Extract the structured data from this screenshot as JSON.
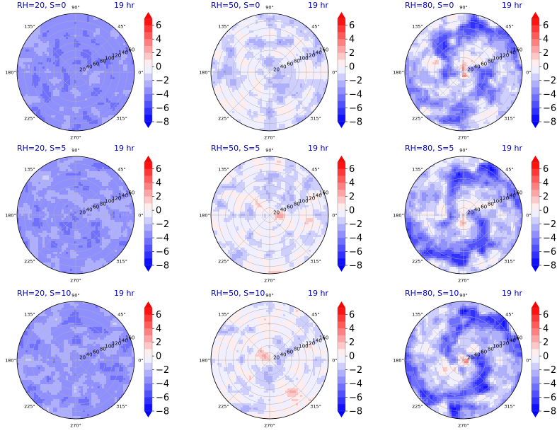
{
  "figure": {
    "colors": {
      "title": "#0000cc",
      "min": "#0000ff",
      "mid": "#ffffff",
      "max": "#ff0000",
      "grid": "#b0b0b0"
    }
  },
  "chart_data": [
    {
      "type": "polar-contour",
      "title": "RH=20, S=0",
      "time_label": "19 hr",
      "theta_labels": [
        "0°",
        "45°",
        "90°",
        "135°",
        "180°",
        "225°",
        "270°",
        "315°"
      ],
      "r_ticks": [
        20,
        40,
        60,
        80,
        100,
        120,
        140,
        160
      ],
      "r_label_angle_deg": 22.5,
      "r_max": 160,
      "colorbar": {
        "ticks": [
          6,
          4,
          2,
          0,
          -2,
          -4,
          -6,
          -8
        ],
        "min": -8,
        "max": 7,
        "extend": "both"
      },
      "field": {
        "base": -3.5,
        "noise": 0.8,
        "spiral": 0,
        "core": 0,
        "patches": []
      }
    },
    {
      "type": "polar-contour",
      "title": "RH=50, S=0",
      "time_label": "19 hr",
      "theta_labels": [
        "0°",
        "45°",
        "90°",
        "135°",
        "180°",
        "225°",
        "270°",
        "315°"
      ],
      "r_ticks": [
        20,
        40,
        60,
        80,
        100,
        120,
        140,
        160
      ],
      "r_label_angle_deg": 22.5,
      "r_max": 160,
      "colorbar": {
        "ticks": [
          6,
          4,
          2,
          0,
          -2,
          -4,
          -6,
          -8
        ],
        "min": -8,
        "max": 7,
        "extend": "both"
      },
      "field": {
        "base": -1.1,
        "noise": 1.3,
        "spiral": 0,
        "core": 0,
        "patches": []
      }
    },
    {
      "type": "polar-contour",
      "title": "RH=80, S=0",
      "time_label": "19 hr",
      "theta_labels": [
        "0°",
        "45°",
        "90°",
        "135°",
        "180°",
        "225°",
        "270°",
        "315°"
      ],
      "r_ticks": [
        20,
        40,
        60,
        80,
        100,
        120,
        140,
        160
      ],
      "r_label_angle_deg": 22.5,
      "r_max": 160,
      "colorbar": {
        "ticks": [
          6,
          4,
          2,
          0,
          -2,
          -4,
          -6,
          -8
        ],
        "min": -8,
        "max": 7,
        "extend": "both"
      },
      "field": {
        "base": -1.2,
        "noise": 1.6,
        "spiral": 3.2,
        "core": 4,
        "patches": []
      }
    },
    {
      "type": "polar-contour",
      "title": "RH=20, S=5",
      "time_label": "19 hr",
      "theta_labels": [
        "0°",
        "45°",
        "90°",
        "135°",
        "180°",
        "225°",
        "270°",
        "315°"
      ],
      "r_ticks": [
        20,
        40,
        60,
        80,
        100,
        120,
        140,
        160
      ],
      "r_label_angle_deg": 22.5,
      "r_max": 160,
      "colorbar": {
        "ticks": [
          6,
          4,
          2,
          0,
          -2,
          -4,
          -6,
          -8
        ],
        "min": -8,
        "max": 7,
        "extend": "both"
      },
      "field": {
        "base": -3.3,
        "noise": 0.9,
        "spiral": 0,
        "core": 0,
        "patches": []
      }
    },
    {
      "type": "polar-contour",
      "title": "RH=50, S=5",
      "time_label": "19 hr",
      "theta_labels": [
        "0°",
        "45°",
        "90°",
        "135°",
        "180°",
        "225°",
        "270°",
        "315°"
      ],
      "r_ticks": [
        20,
        40,
        60,
        80,
        100,
        120,
        140,
        160
      ],
      "r_label_angle_deg": 22.5,
      "r_max": 160,
      "colorbar": {
        "ticks": [
          6,
          4,
          2,
          0,
          -2,
          -4,
          -6,
          -8
        ],
        "min": -8,
        "max": 7,
        "extend": "both"
      },
      "field": {
        "base": -0.8,
        "noise": 1.4,
        "spiral": 0,
        "core": 0,
        "patches": [
          [
            -0.55,
            0.1,
            3
          ],
          [
            -0.3,
            0.3,
            2.5
          ],
          [
            0.2,
            -0.05,
            2.5
          ]
        ]
      }
    },
    {
      "type": "polar-contour",
      "title": "RH=80, S=5",
      "time_label": "19 hr",
      "theta_labels": [
        "0°",
        "45°",
        "90°",
        "135°",
        "180°",
        "225°",
        "270°",
        "315°"
      ],
      "r_ticks": [
        20,
        40,
        60,
        80,
        100,
        120,
        140,
        160
      ],
      "r_label_angle_deg": 22.5,
      "r_max": 160,
      "colorbar": {
        "ticks": [
          6,
          4,
          2,
          0,
          -2,
          -4,
          -6,
          -8
        ],
        "min": -8,
        "max": 7,
        "extend": "both"
      },
      "field": {
        "base": -1.6,
        "noise": 1.6,
        "spiral": 3.5,
        "core": 3,
        "patches": [
          [
            0.75,
            0.55,
            5
          ]
        ]
      }
    },
    {
      "type": "polar-contour",
      "title": "RH=20, S=10",
      "time_label": "19 hr",
      "theta_labels": [
        "0°",
        "45°",
        "90°",
        "135°",
        "180°",
        "225°",
        "270°",
        "315°"
      ],
      "r_ticks": [
        20,
        40,
        60,
        80,
        100,
        120,
        140,
        160
      ],
      "r_label_angle_deg": 22.5,
      "r_max": 160,
      "colorbar": {
        "ticks": [
          6,
          4,
          2,
          0,
          -2,
          -4,
          -6,
          -8
        ],
        "min": -8,
        "max": 7,
        "extend": "both"
      },
      "field": {
        "base": -3.2,
        "noise": 1.0,
        "spiral": 0,
        "core": 0,
        "patches": []
      }
    },
    {
      "type": "polar-contour",
      "title": "RH=50, S=10",
      "time_label": "19 hr",
      "theta_labels": [
        "0°",
        "45°",
        "90°",
        "135°",
        "180°",
        "225°",
        "270°",
        "315°"
      ],
      "r_ticks": [
        20,
        40,
        60,
        80,
        100,
        120,
        140,
        160
      ],
      "r_label_angle_deg": 22.5,
      "r_max": 160,
      "colorbar": {
        "ticks": [
          6,
          4,
          2,
          0,
          -2,
          -4,
          -6,
          -8
        ],
        "min": -8,
        "max": 7,
        "extend": "both"
      },
      "field": {
        "base": -0.7,
        "noise": 1.3,
        "spiral": 0,
        "core": 0,
        "patches": [
          [
            -0.1,
            0.05,
            2.5
          ],
          [
            -0.4,
            0.2,
            2
          ],
          [
            0.4,
            -0.6,
            2
          ]
        ]
      }
    },
    {
      "type": "polar-contour",
      "title": "RH=80, S=10",
      "time_label": "19 hr",
      "theta_labels": [
        "0°",
        "45°",
        "90°",
        "135°",
        "180°",
        "225°",
        "270°",
        "315°"
      ],
      "r_ticks": [
        20,
        40,
        60,
        80,
        100,
        120,
        140,
        160
      ],
      "r_label_angle_deg": 22.5,
      "r_max": 160,
      "colorbar": {
        "ticks": [
          6,
          4,
          2,
          0,
          -2,
          -4,
          -6,
          -8
        ],
        "min": -8,
        "max": 7,
        "extend": "both"
      },
      "field": {
        "base": -1.8,
        "noise": 1.5,
        "spiral": 3.8,
        "core": 6,
        "patches": []
      }
    }
  ]
}
